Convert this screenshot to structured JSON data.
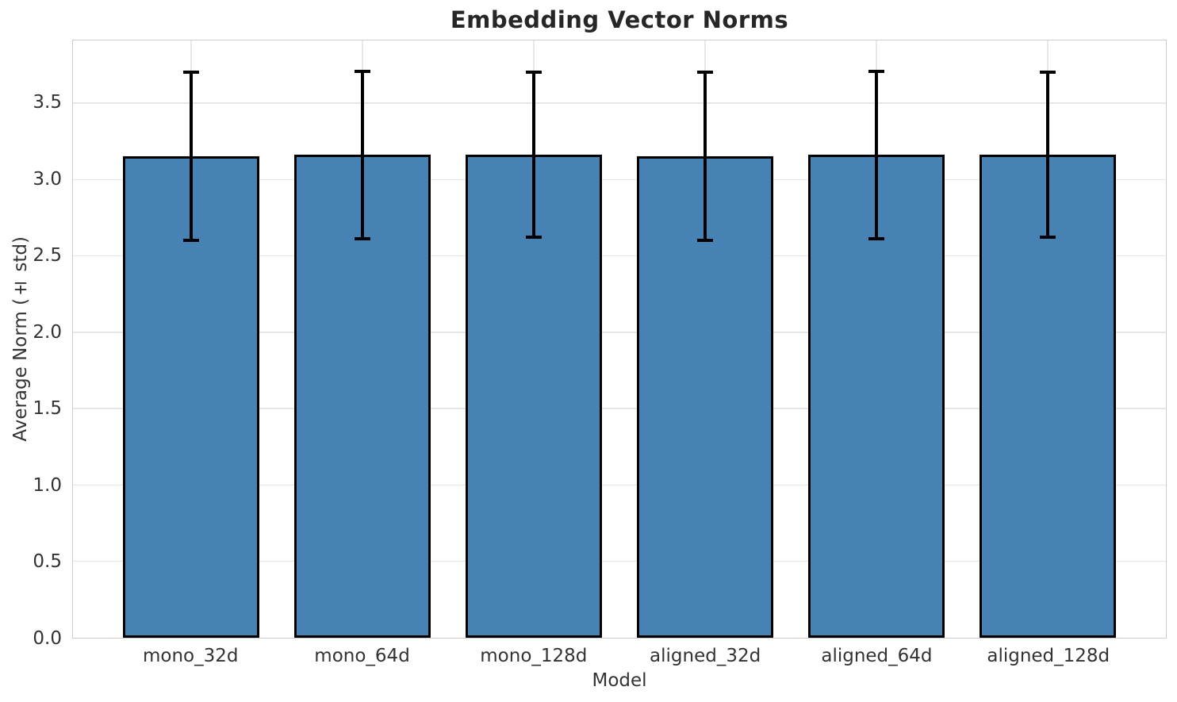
{
  "chart_data": {
    "type": "bar",
    "title": "Embedding Vector Norms",
    "xlabel": "Model",
    "ylabel": "Average Norm (± std)",
    "categories": [
      "mono_32d",
      "mono_64d",
      "mono_128d",
      "aligned_32d",
      "aligned_64d",
      "aligned_128d"
    ],
    "series": [
      {
        "name": "Average Norm",
        "values": [
          3.15,
          3.16,
          3.16,
          3.15,
          3.16,
          3.16
        ],
        "errors": [
          0.55,
          0.55,
          0.54,
          0.55,
          0.55,
          0.54
        ]
      }
    ],
    "error_bar_tops": [
      3.7,
      3.71,
      3.7,
      3.7,
      3.71,
      3.7
    ],
    "error_bar_bottoms": [
      2.6,
      2.61,
      2.62,
      2.6,
      2.61,
      2.62
    ],
    "ylim": [
      0,
      3.91
    ],
    "xlim": [
      -0.69,
      5.69
    ],
    "yticks": [
      0.0,
      0.5,
      1.0,
      1.5,
      2.0,
      2.5,
      3.0,
      3.5
    ],
    "ytick_labels": [
      "0.0",
      "0.5",
      "1.0",
      "1.5",
      "2.0",
      "2.5",
      "3.0",
      "3.5"
    ],
    "bar_width": 0.8,
    "grid": "both",
    "legend": "none",
    "colors": {
      "figure_bg": "#ffffff",
      "bar": "#4682b4",
      "bar_edge": "#000000",
      "error": "#000000",
      "grid": "#e7e7e7",
      "spine": "#cccccc",
      "title_text": "#262626",
      "axis_text": "#333333"
    }
  }
}
